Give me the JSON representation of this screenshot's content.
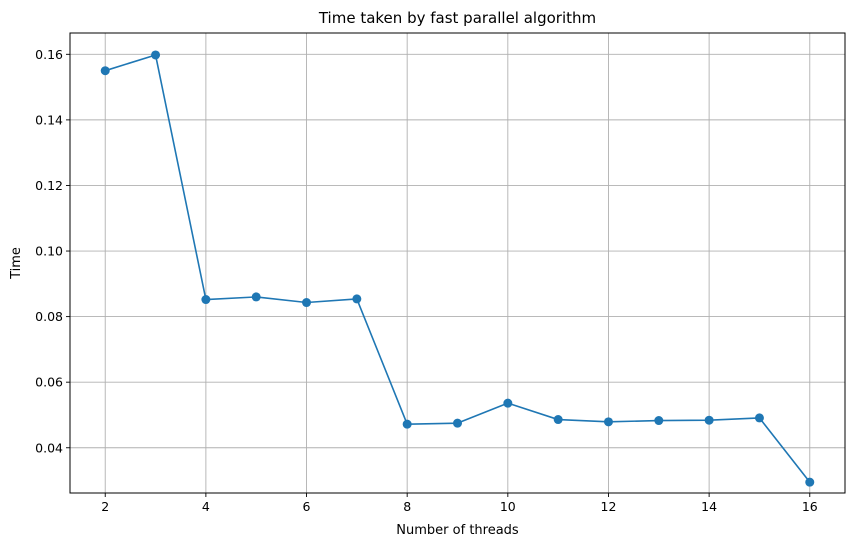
{
  "chart_data": {
    "type": "line",
    "title": "Time taken by fast parallel algorithm",
    "xlabel": "Number of threads",
    "ylabel": "Time",
    "x": [
      2,
      3,
      4,
      5,
      6,
      7,
      8,
      9,
      10,
      11,
      12,
      13,
      14,
      15,
      16
    ],
    "series": [
      {
        "values": [
          0.155,
          0.1598,
          0.0852,
          0.086,
          0.0843,
          0.0854,
          0.0472,
          0.0475,
          0.0536,
          0.0486,
          0.0479,
          0.0483,
          0.0484,
          0.0491,
          0.0295
        ],
        "color": "#1f77b4",
        "marker": "circle"
      }
    ],
    "xlim": [
      1.3,
      16.7
    ],
    "ylim": [
      0.0262,
      0.1665
    ],
    "xticks": [
      2,
      4,
      6,
      8,
      10,
      12,
      14,
      16
    ],
    "xtick_labels": [
      "2",
      "4",
      "6",
      "8",
      "10",
      "12",
      "14",
      "16"
    ],
    "yticks": [
      0.04,
      0.06,
      0.08,
      0.1,
      0.12,
      0.14,
      0.16
    ],
    "ytick_labels": [
      "0.04",
      "0.06",
      "0.08",
      "0.10",
      "0.12",
      "0.14",
      "0.16"
    ],
    "grid": true,
    "grid_color": "#b0b0b0"
  }
}
